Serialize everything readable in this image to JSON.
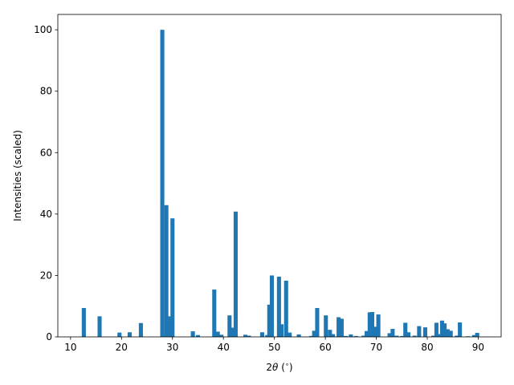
{
  "chart_data": {
    "type": "bar",
    "title": "",
    "xlabel_prefix": "2",
    "xlabel_symbol": "θ",
    "xlabel_suffix": " (",
    "xlabel_degree": "∘",
    "xlabel_close": ")",
    "ylabel": "Intensities (scaled)",
    "xlim": [
      7.5,
      94.5
    ],
    "ylim": [
      0,
      105
    ],
    "xticks": [
      10,
      20,
      30,
      40,
      50,
      60,
      70,
      80,
      90
    ],
    "yticks": [
      0,
      20,
      40,
      60,
      80,
      100
    ],
    "bar_color": "#1f77b4",
    "bar_width": 0.8,
    "grid": false,
    "legend": "none",
    "series": [
      {
        "x": [
          12.6,
          15.7,
          19.6,
          21.6,
          23.8,
          28.0,
          28.8,
          29.4,
          30.0,
          34.0,
          35.0,
          38.2,
          38.9,
          39.6,
          41.2,
          41.8,
          42.4,
          44.3,
          45.0,
          47.6,
          48.6,
          49.0,
          49.5,
          50.9,
          51.4,
          52.3,
          53.0,
          54.8,
          57.2,
          57.8,
          58.4,
          60.1,
          60.9,
          61.5,
          62.6,
          63.2,
          64.0,
          65.0,
          66.0,
          67.5,
          68.1,
          68.7,
          69.2,
          69.8,
          70.4,
          72.6,
          73.2,
          74.0,
          75.1,
          75.7,
          76.3,
          77.5,
          78.4,
          79.6,
          81.2,
          81.8,
          82.4,
          82.9,
          83.4,
          84.0,
          84.6,
          85.8,
          86.4,
          88.0,
          89.2,
          89.8
        ],
        "values": [
          9.4,
          6.7,
          1.4,
          1.5,
          4.5,
          100,
          42.9,
          6.7,
          38.6,
          1.8,
          0.6,
          15.4,
          1.7,
          0.7,
          7.0,
          3.0,
          40.8,
          0.7,
          0.4,
          1.5,
          0.6,
          10.5,
          20.0,
          19.6,
          4.1,
          18.3,
          1.4,
          0.8,
          0.3,
          2.0,
          9.4,
          7.0,
          2.3,
          0.9,
          6.4,
          5.9,
          0.3,
          0.8,
          0.3,
          0.4,
          1.9,
          8.0,
          8.1,
          3.3,
          7.3,
          1.2,
          2.6,
          0.4,
          0.3,
          4.6,
          1.5,
          0.4,
          3.5,
          3.1,
          0.4,
          4.6,
          0.9,
          5.3,
          4.4,
          2.5,
          2.0,
          0.4,
          4.7,
          0.2,
          0.6,
          1.3
        ]
      }
    ]
  }
}
